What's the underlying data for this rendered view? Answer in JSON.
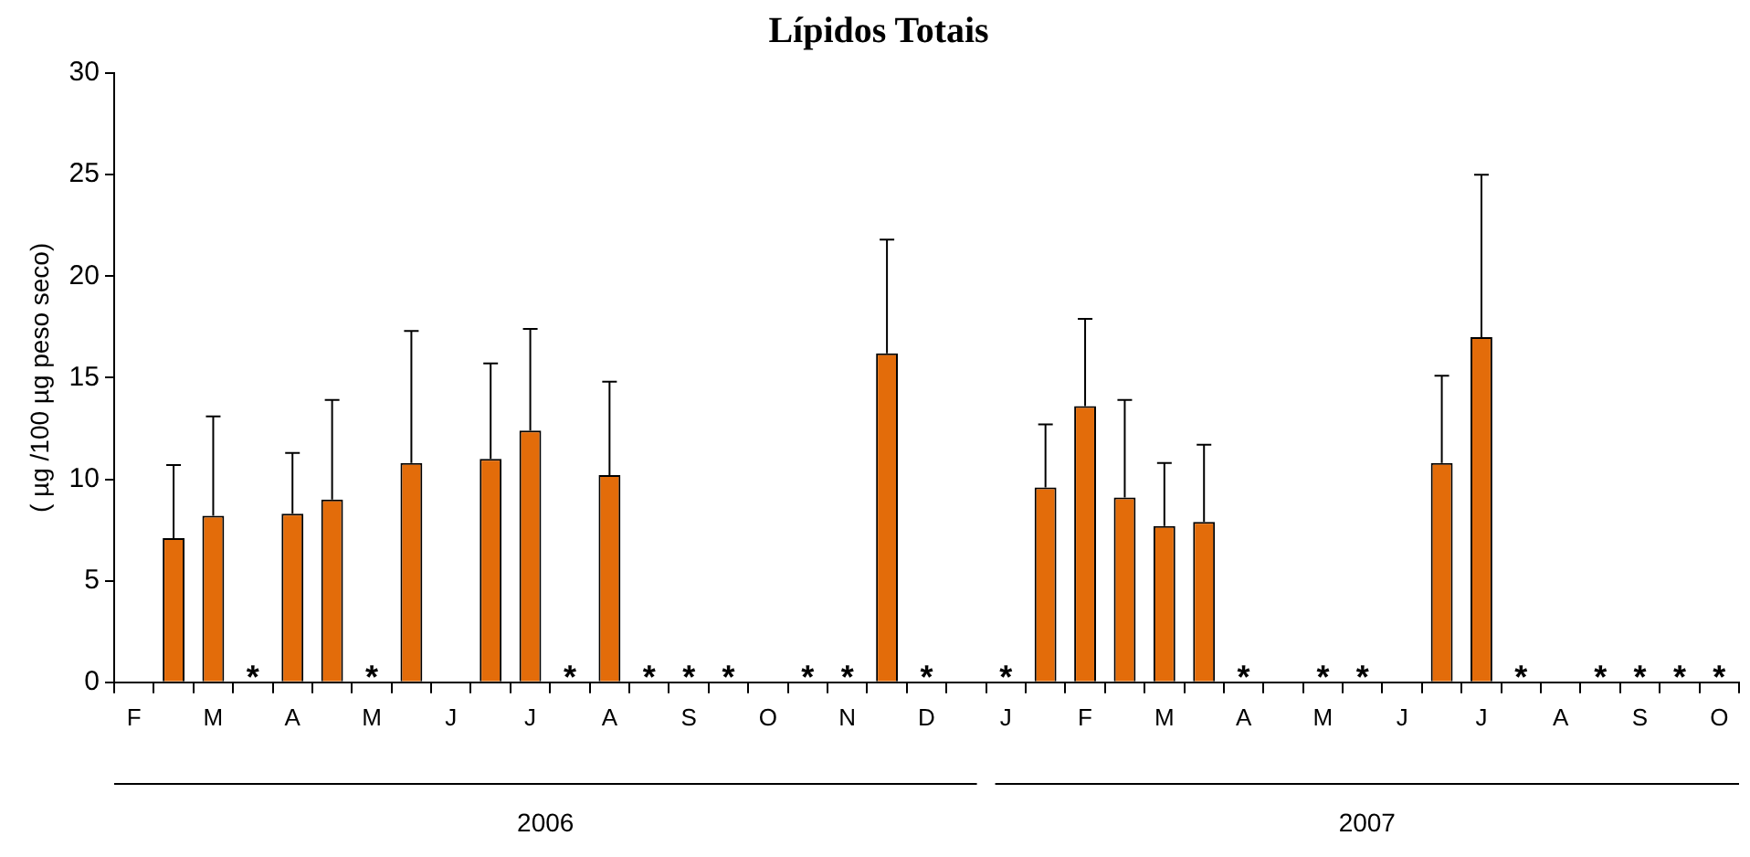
{
  "chart_data": {
    "type": "bar",
    "title": "Lípidos Totais",
    "ylabel": "( µg /100 µg peso seco)",
    "categories": [
      "F",
      null,
      "M",
      null,
      "A",
      null,
      "M",
      null,
      "J",
      null,
      "J",
      null,
      "A",
      null,
      "S",
      null,
      "O",
      null,
      "N",
      null,
      "D",
      null,
      "J",
      null,
      "F",
      null,
      "M",
      null,
      "A",
      null,
      "M",
      null,
      "J",
      null,
      "J",
      null,
      "A",
      null,
      "S",
      null,
      "O"
    ],
    "values": [
      null,
      7.1,
      8.2,
      0,
      8.3,
      9.0,
      0,
      10.8,
      null,
      11.0,
      12.4,
      0,
      10.2,
      0,
      0,
      0,
      null,
      0,
      0,
      16.2,
      0,
      null,
      0,
      9.6,
      13.6,
      9.1,
      7.7,
      7.9,
      0,
      null,
      0,
      0,
      null,
      10.8,
      17.0,
      0,
      null,
      0,
      0,
      0,
      0
    ],
    "value_labels": [
      null,
      null,
      null,
      "*",
      null,
      null,
      "*",
      null,
      null,
      null,
      null,
      "*",
      null,
      "*",
      "*",
      "*",
      null,
      "*",
      "*",
      null,
      "*",
      null,
      "*",
      null,
      null,
      null,
      null,
      null,
      "*",
      null,
      "*",
      "*",
      null,
      null,
      null,
      "*",
      null,
      "*",
      "*",
      "*",
      "*"
    ],
    "errors": [
      null,
      [
        7.1,
        10.7
      ],
      [
        8.2,
        13.1
      ],
      null,
      [
        8.3,
        11.3
      ],
      [
        9.0,
        13.9
      ],
      null,
      [
        10.8,
        17.3
      ],
      null,
      [
        11.0,
        15.7
      ],
      [
        12.4,
        17.4
      ],
      null,
      [
        10.2,
        14.8
      ],
      null,
      null,
      null,
      null,
      null,
      null,
      [
        16.2,
        21.8
      ],
      null,
      null,
      null,
      [
        9.6,
        12.7
      ],
      [
        13.6,
        17.9
      ],
      [
        9.1,
        13.9
      ],
      [
        7.7,
        10.8
      ],
      [
        7.9,
        11.7
      ],
      null,
      null,
      null,
      null,
      null,
      [
        10.8,
        15.1
      ],
      [
        17.0,
        25.0
      ],
      null,
      null,
      null,
      null,
      null,
      null
    ],
    "color": "#e36c0a",
    "ylim": [
      0,
      30
    ],
    "yticks": [
      0,
      5,
      10,
      15,
      20,
      25,
      30
    ],
    "legend": false,
    "annotations": [
      "2006",
      "2007"
    ]
  }
}
